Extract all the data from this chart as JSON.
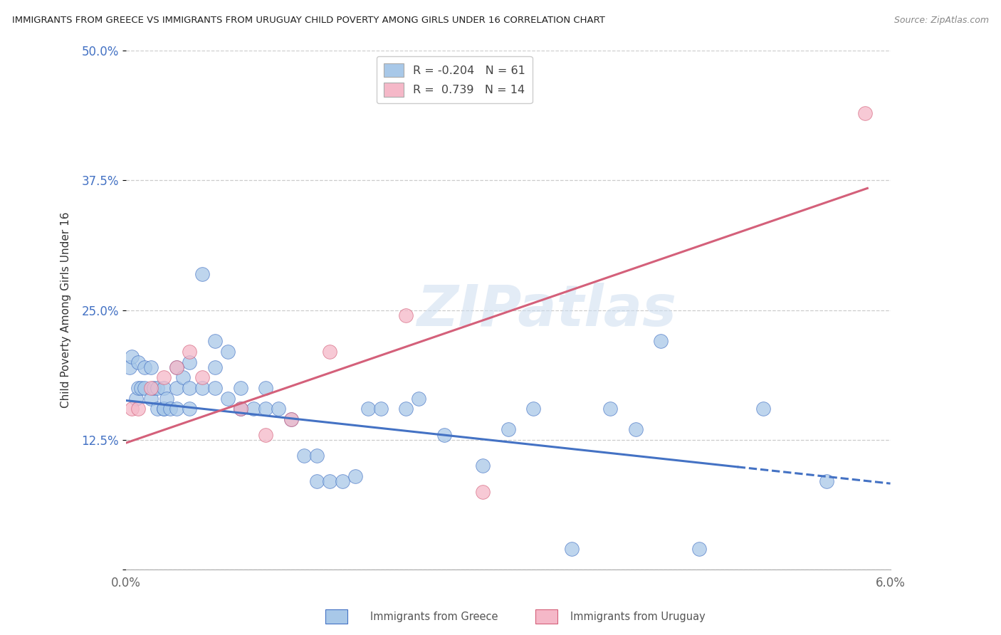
{
  "title": "IMMIGRANTS FROM GREECE VS IMMIGRANTS FROM URUGUAY CHILD POVERTY AMONG GIRLS UNDER 16 CORRELATION CHART",
  "source": "Source: ZipAtlas.com",
  "ylabel": "Child Poverty Among Girls Under 16",
  "xmin": 0.0,
  "xmax": 0.06,
  "ymin": 0.0,
  "ymax": 0.5,
  "yticks": [
    0.0,
    0.125,
    0.25,
    0.375,
    0.5
  ],
  "ytick_labels": [
    "",
    "12.5%",
    "25.0%",
    "37.5%",
    "50.0%"
  ],
  "xtick_labels": [
    "0.0%",
    "6.0%"
  ],
  "greece_R": -0.204,
  "greece_N": 61,
  "uruguay_R": 0.739,
  "uruguay_N": 14,
  "greece_color": "#a8c8e8",
  "uruguay_color": "#f5b8c8",
  "greece_line_color": "#4472c4",
  "uruguay_line_color": "#d4607a",
  "background_color": "#ffffff",
  "grid_color": "#cccccc",
  "watermark": "ZIPatlas",
  "greece_x": [
    0.0003,
    0.0005,
    0.0008,
    0.001,
    0.001,
    0.0012,
    0.0015,
    0.0015,
    0.002,
    0.002,
    0.0022,
    0.0025,
    0.0025,
    0.003,
    0.003,
    0.003,
    0.0032,
    0.0035,
    0.004,
    0.004,
    0.004,
    0.0045,
    0.005,
    0.005,
    0.005,
    0.006,
    0.006,
    0.007,
    0.007,
    0.007,
    0.008,
    0.008,
    0.009,
    0.009,
    0.009,
    0.01,
    0.011,
    0.011,
    0.012,
    0.013,
    0.014,
    0.015,
    0.015,
    0.016,
    0.017,
    0.018,
    0.019,
    0.02,
    0.022,
    0.023,
    0.025,
    0.028,
    0.03,
    0.032,
    0.035,
    0.038,
    0.04,
    0.042,
    0.045,
    0.05,
    0.055
  ],
  "greece_y": [
    0.195,
    0.205,
    0.165,
    0.2,
    0.175,
    0.175,
    0.195,
    0.175,
    0.195,
    0.165,
    0.175,
    0.175,
    0.155,
    0.175,
    0.155,
    0.155,
    0.165,
    0.155,
    0.175,
    0.195,
    0.155,
    0.185,
    0.2,
    0.175,
    0.155,
    0.285,
    0.175,
    0.195,
    0.22,
    0.175,
    0.21,
    0.165,
    0.175,
    0.155,
    0.155,
    0.155,
    0.175,
    0.155,
    0.155,
    0.145,
    0.11,
    0.11,
    0.085,
    0.085,
    0.085,
    0.09,
    0.155,
    0.155,
    0.155,
    0.165,
    0.13,
    0.1,
    0.135,
    0.155,
    0.02,
    0.155,
    0.135,
    0.22,
    0.02,
    0.155,
    0.085
  ],
  "uruguay_x": [
    0.0005,
    0.001,
    0.002,
    0.003,
    0.004,
    0.005,
    0.006,
    0.009,
    0.011,
    0.013,
    0.016,
    0.022,
    0.028,
    0.058
  ],
  "uruguay_y": [
    0.155,
    0.155,
    0.175,
    0.185,
    0.195,
    0.21,
    0.185,
    0.155,
    0.13,
    0.145,
    0.21,
    0.245,
    0.075,
    0.44
  ]
}
